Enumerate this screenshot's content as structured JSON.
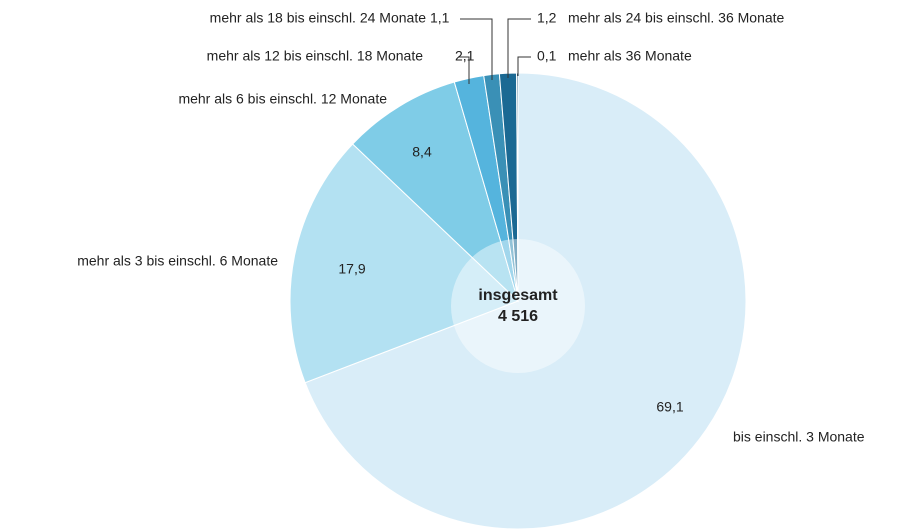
{
  "chart_data": {
    "type": "pie",
    "categories": [
      "bis einschl. 3 Monate",
      "mehr als 3 bis einschl. 6 Monate",
      "mehr als 6 bis einschl. 12 Monate",
      "mehr als 12 bis einschl. 18 Monate",
      "mehr als 18 bis einschl. 24 Monate",
      "mehr als 24 bis einschl. 36 Monate",
      "mehr als 36 Monate"
    ],
    "values": [
      69.1,
      17.9,
      8.4,
      2.1,
      1.1,
      1.2,
      0.1
    ],
    "value_labels": [
      "69,1",
      "17,9",
      "8,4",
      "2,1",
      "1,1",
      "1,2",
      "0,1"
    ],
    "colors": [
      "#d9edf8",
      "#b3e1f2",
      "#7fcce7",
      "#55b4dd",
      "#3a90b6",
      "#1b6993",
      "#0e4a6f"
    ],
    "center_text": {
      "label": "insgesamt",
      "total": "4 516"
    }
  }
}
